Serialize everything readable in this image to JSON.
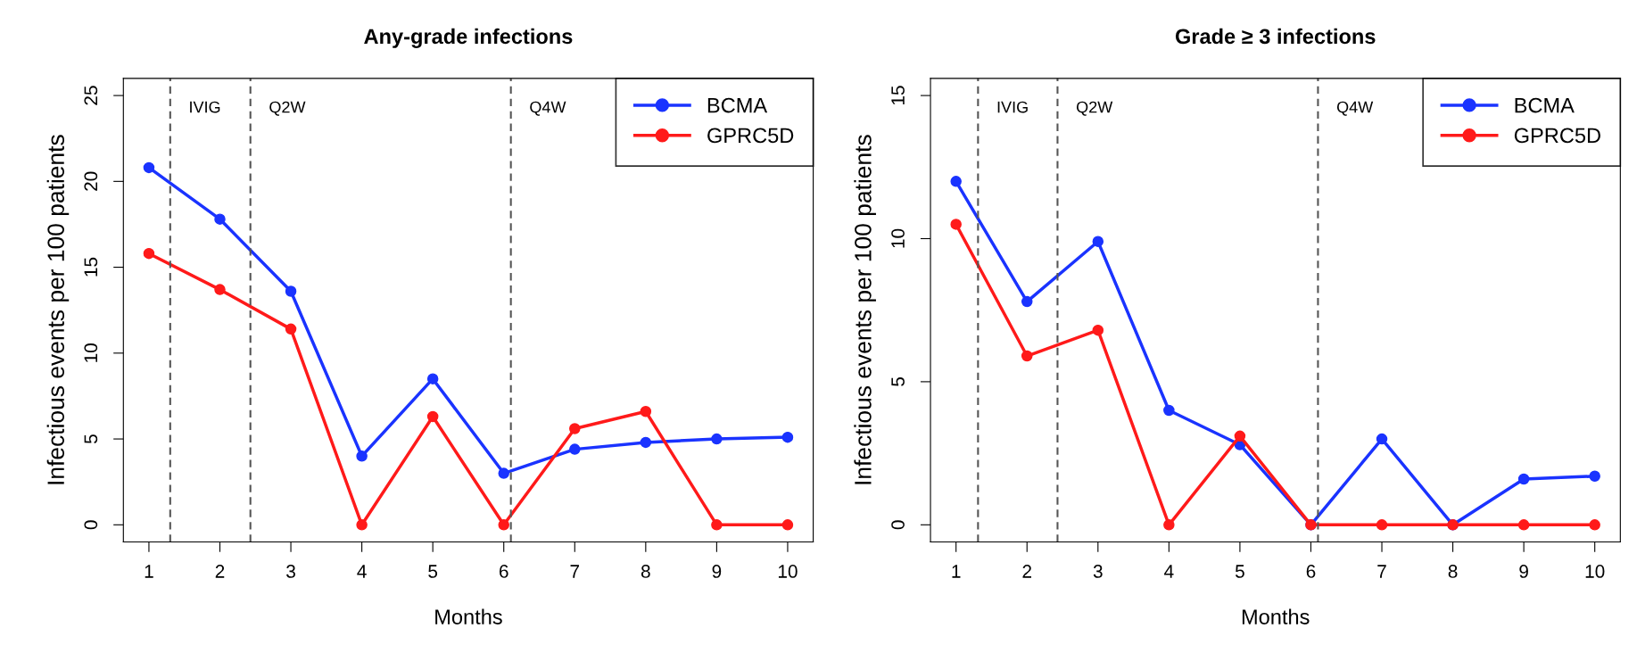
{
  "chart_data": [
    {
      "type": "line",
      "title": "Any-grade infections",
      "xlabel": "Months",
      "ylabel": "Infectious events per 100 patients",
      "x": [
        1,
        2,
        3,
        4,
        5,
        6,
        7,
        8,
        9,
        10
      ],
      "series": [
        {
          "name": "BCMA",
          "color": "#1a33ff",
          "values": [
            20.8,
            17.8,
            13.6,
            4.0,
            8.5,
            3.0,
            4.4,
            4.8,
            5.0,
            5.1
          ]
        },
        {
          "name": "GPRC5D",
          "color": "#ff1a1a",
          "values": [
            15.8,
            13.7,
            11.4,
            0,
            6.3,
            0,
            5.6,
            6.6,
            0,
            0
          ]
        }
      ],
      "xlim": [
        0.64,
        10.36
      ],
      "xticks": [
        1,
        2,
        3,
        4,
        5,
        6,
        7,
        8,
        9,
        10
      ],
      "ylim": [
        -1,
        26
      ],
      "yticks": [
        0,
        5,
        10,
        15,
        20,
        25
      ],
      "ref_lines": [
        {
          "axis": "x",
          "value": 1.3,
          "label": "IVIG",
          "color": "#555555",
          "line_style": "dashed"
        },
        {
          "axis": "x",
          "value": 2.43,
          "label": "Q2W",
          "color": "#555555",
          "line_style": "dashed"
        },
        {
          "axis": "x",
          "value": 6.1,
          "label": "Q4W",
          "color": "#555555",
          "line_style": "dashed"
        }
      ],
      "grid": false,
      "legend": "top right",
      "marker": "circle",
      "line_style": "solid"
    },
    {
      "type": "line",
      "title": "Grade ≥ 3 infections",
      "xlabel": "Months",
      "ylabel": "Infectious events per 100 patients",
      "x": [
        1,
        2,
        3,
        4,
        5,
        6,
        7,
        8,
        9,
        10
      ],
      "series": [
        {
          "name": "BCMA",
          "color": "#1a33ff",
          "values": [
            12.0,
            7.8,
            9.9,
            4.0,
            2.8,
            0,
            3.0,
            0,
            1.6,
            1.7
          ]
        },
        {
          "name": "GPRC5D",
          "color": "#ff1a1a",
          "values": [
            10.5,
            5.9,
            6.8,
            0,
            3.1,
            0,
            0,
            0,
            0,
            0
          ]
        }
      ],
      "xlim": [
        0.64,
        10.36
      ],
      "xticks": [
        1,
        2,
        3,
        4,
        5,
        6,
        7,
        8,
        9,
        10
      ],
      "ylim": [
        -0.6,
        15.6
      ],
      "yticks": [
        0,
        5,
        10,
        15
      ],
      "ref_lines": [
        {
          "axis": "x",
          "value": 1.31,
          "label": "IVIG",
          "color": "#555555",
          "line_style": "dashed"
        },
        {
          "axis": "x",
          "value": 2.43,
          "label": "Q2W",
          "color": "#555555",
          "line_style": "dashed"
        },
        {
          "axis": "x",
          "value": 6.1,
          "label": "Q4W",
          "color": "#555555",
          "line_style": "dashed"
        }
      ],
      "grid": false,
      "legend": "top right",
      "marker": "circle",
      "line_style": "solid"
    }
  ]
}
